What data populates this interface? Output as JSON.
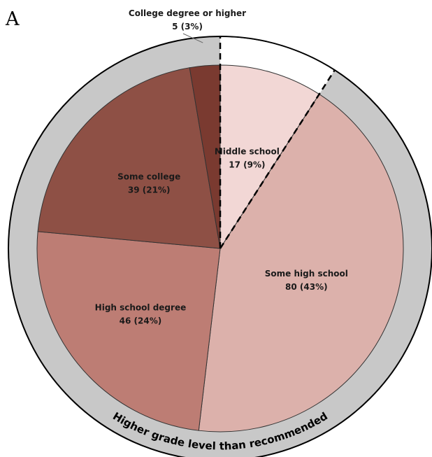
{
  "panel_label": "A",
  "chart_data": {
    "type": "pie",
    "slices": [
      {
        "name": "Middle school",
        "count": 17,
        "percent": 9,
        "count_label": "17 (9%)",
        "color": "#f2d7d5"
      },
      {
        "name": "Some high school",
        "count": 80,
        "percent": 43,
        "count_label": "80 (43%)",
        "color": "#dcb1ab"
      },
      {
        "name": "High school degree",
        "count": 46,
        "percent": 24,
        "count_label": "46 (24%)",
        "color": "#bd7d74"
      },
      {
        "name": "Some college",
        "count": 39,
        "percent": 21,
        "count_label": "39 (21%)",
        "color": "#8e5045"
      },
      {
        "name": "College degree or higher",
        "count": 5,
        "percent": 3,
        "count_label": "5 (3%)",
        "color": "#7a3a30"
      }
    ],
    "highlighted_slice": "Middle school",
    "outer_ring": {
      "label": "Higher grade level than recommended",
      "color": "#c8c8c8"
    }
  }
}
